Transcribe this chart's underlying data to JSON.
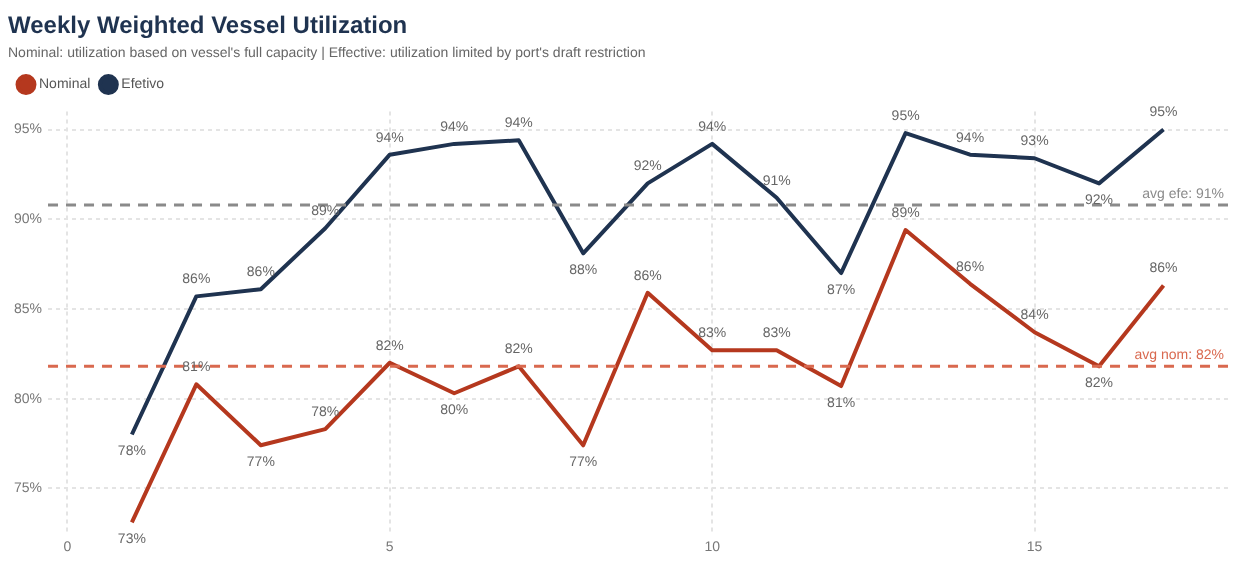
{
  "chart_data": {
    "type": "line",
    "title": "Weekly Weighted Vessel Utilization",
    "subtitle": "Nominal: utilization based on vessel's full capacity | Effective: utilization limited by port's draft restriction",
    "x": [
      1,
      2,
      3,
      4,
      5,
      6,
      7,
      8,
      9,
      10,
      11,
      12,
      13,
      14,
      15,
      16,
      17
    ],
    "series": [
      {
        "name": "Nominal",
        "color": "#b5381e",
        "values": [
          73.1,
          80.8,
          77.4,
          78.3,
          82.0,
          80.3,
          81.8,
          77.4,
          85.9,
          82.7,
          82.7,
          80.7,
          89.4,
          86.4,
          83.7,
          81.8,
          86.3
        ],
        "value_labels": [
          "73%",
          "81%",
          "77%",
          "78%",
          "82%",
          "80%",
          "82%",
          "77%",
          "86%",
          "83%",
          "83%",
          "81%",
          "89%",
          "86%",
          "84%",
          "82%",
          "86%"
        ]
      },
      {
        "name": "Efetivo",
        "color": "#1f3350",
        "values": [
          78.0,
          85.7,
          86.1,
          89.5,
          93.6,
          94.2,
          94.4,
          88.1,
          92.0,
          94.2,
          91.2,
          87.0,
          94.8,
          93.6,
          93.4,
          92.0,
          95.0
        ],
        "value_labels": [
          "78%",
          "86%",
          "86%",
          "89%",
          "94%",
          "94%",
          "94%",
          "88%",
          "92%",
          "94%",
          "91%",
          "87%",
          "95%",
          "94%",
          "93%",
          "92%",
          "95%"
        ]
      }
    ],
    "xlim": [
      -0.3,
      18
    ],
    "xticks": [
      0,
      5,
      10,
      15
    ],
    "ylim": [
      72.5,
      96
    ],
    "yticks": [
      {
        "value": 75,
        "label": "75%"
      },
      {
        "value": 80,
        "label": "80%"
      },
      {
        "value": 85,
        "label": "85%"
      },
      {
        "value": 90,
        "label": "90%"
      },
      {
        "value": 95,
        "label": "95%"
      }
    ],
    "ref_lines": [
      {
        "axis": "y",
        "value": 90.8,
        "label": "avg efe: 91%",
        "color": "#8a8a8a",
        "line_style": "dashed"
      },
      {
        "axis": "y",
        "value": 81.8,
        "label": "avg nom: 82%",
        "color": "#d9694f",
        "line_style": "dashed"
      }
    ],
    "grid": true,
    "legend": "top left",
    "marker": "none",
    "line_style": "solid"
  }
}
